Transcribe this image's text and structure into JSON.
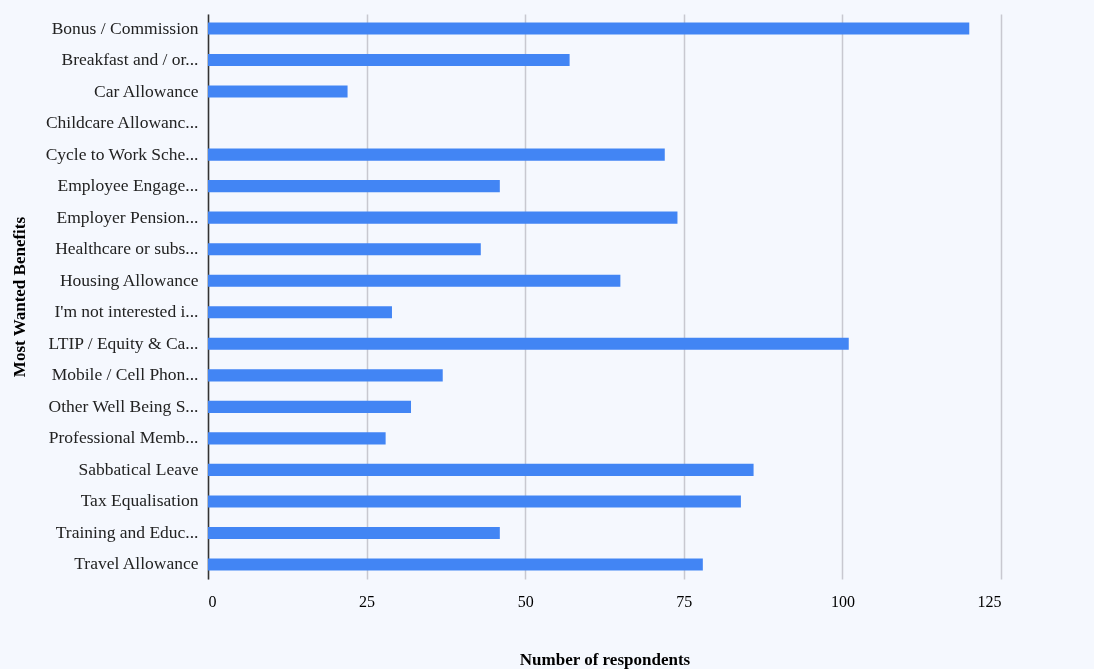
{
  "chart_data": {
    "type": "bar",
    "orientation": "horizontal",
    "xlabel": "Number of respondents",
    "ylabel": "Most Wanted Benefits",
    "categories": [
      "Bonus / Commission",
      "Breakfast and / or...",
      "Car Allowance",
      "Childcare Allowanc...",
      "Cycle to Work Sche...",
      "Employee Engage...",
      "Employer Pension...",
      "Healthcare or subs...",
      "Housing Allowance",
      "I'm not interested i...",
      "LTIP / Equity & Ca...",
      "Mobile / Cell Phon...",
      "Other Well Being S...",
      "Professional Memb...",
      "Sabbatical Leave",
      "Tax Equalisation",
      "Training and Educ...",
      "Travel Allowance"
    ],
    "values": [
      120,
      57,
      22,
      0,
      72,
      46,
      74,
      43,
      65,
      29,
      101,
      37,
      32,
      28,
      86,
      84,
      46,
      78
    ],
    "color": "#4285f4",
    "xlim": [
      0,
      125
    ],
    "xticks": [
      0,
      25,
      50,
      75,
      100,
      125
    ],
    "grid": "x"
  }
}
